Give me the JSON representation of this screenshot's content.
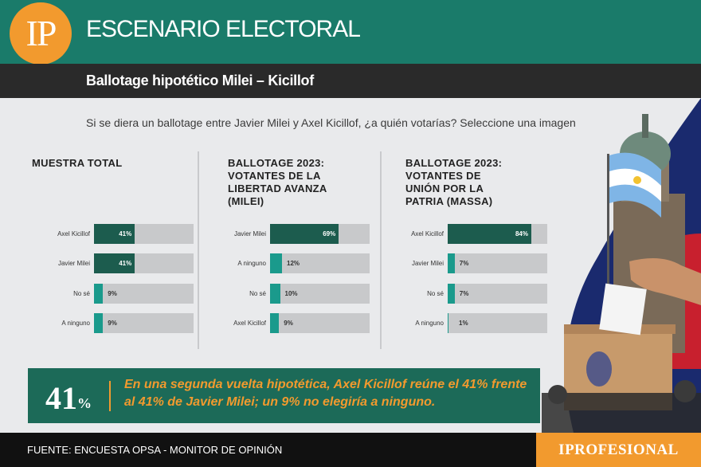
{
  "header": {
    "logo": "IP",
    "title": "ESCENARIO ELECTORAL"
  },
  "subheader": {
    "title": "Ballotage hipotético Milei – Kicillof"
  },
  "question": "Si se diera un ballotage entre Javier Milei y Axel Kicillof, ¿a quién votarías? Seleccione una imagen",
  "colors": {
    "teal_dark": "#1c5c4e",
    "teal_light": "#1a9a8c",
    "orange": "#f29a2e",
    "bar_bg": "#c8c9cb"
  },
  "chart_data": [
    {
      "type": "bar",
      "title": "MUESTRA TOTAL",
      "categories": [
        "Axel Kicillof",
        "Javier Milei",
        "No sé",
        "A ninguno"
      ],
      "values": [
        41,
        41,
        9,
        9
      ],
      "labels": [
        "41%",
        "41%",
        "9%",
        "9%"
      ],
      "xlim": [
        0,
        100
      ]
    },
    {
      "type": "bar",
      "title": "BALLOTAGE 2023: VOTANTES DE LA LIBERTAD AVANZA (MILEI)",
      "categories": [
        "Javier Milei",
        "A ninguno",
        "No sé",
        "Axel Kicillof"
      ],
      "values": [
        69,
        12,
        10,
        9
      ],
      "labels": [
        "69%",
        "12%",
        "10%",
        "9%"
      ],
      "xlim": [
        0,
        100
      ]
    },
    {
      "type": "bar",
      "title": "BALLOTAGE 2023: VOTANTES DE UNIÓN POR LA PATRIA (MASSA)",
      "categories": [
        "Axel Kicillof",
        "Javier Milei",
        "No sé",
        "A ninguno"
      ],
      "values": [
        84,
        7,
        7,
        1
      ],
      "labels": [
        "84%",
        "7%",
        "7%",
        "1%"
      ],
      "xlim": [
        0,
        100
      ]
    }
  ],
  "highlight": {
    "number": "41",
    "percent": "%",
    "text": "En una segunda vuelta hipotética, Axel Kicillof reúne el 41% frente al 41% de Javier Milei; un 9% no elegiría a ninguno."
  },
  "footer": {
    "source": "FUENTE: ENCUESTA OPSA - MONITOR DE OPINIÓN",
    "brand": "IPROFESIONAL"
  }
}
